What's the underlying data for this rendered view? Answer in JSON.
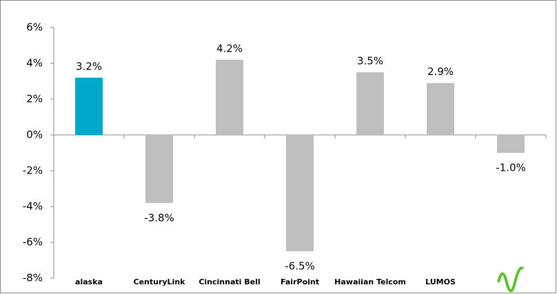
{
  "chart_data": {
    "type": "bar",
    "categories": [
      "alaska",
      "CenturyLink",
      "Cincinnati Bell",
      "FairPoint",
      "Hawaiian Telcom",
      "LUMOS",
      null
    ],
    "values": [
      3.2,
      -3.8,
      4.2,
      -6.5,
      3.5,
      2.9,
      -1.0
    ],
    "value_labels": [
      "3.2%",
      "-3.8%",
      "4.2%",
      "-6.5%",
      "3.5%",
      "2.9%",
      "-1.0%"
    ],
    "colors": [
      "#00a8cc",
      "#bfbfbf",
      "#bfbfbf",
      "#bfbfbf",
      "#bfbfbf",
      "#bfbfbf",
      "#bfbfbf"
    ],
    "ylim": [
      -8,
      6
    ],
    "yticks": [
      {
        "value": -8,
        "label": "-8%"
      },
      {
        "value": -6,
        "label": "-6%"
      },
      {
        "value": -4,
        "label": "-4%"
      },
      {
        "value": -2,
        "label": "-2%"
      },
      {
        "value": 0,
        "label": "0%"
      },
      {
        "value": 2,
        "label": "2%"
      },
      {
        "value": 4,
        "label": "4%"
      },
      {
        "value": 6,
        "label": "6%"
      }
    ],
    "grid": false
  }
}
